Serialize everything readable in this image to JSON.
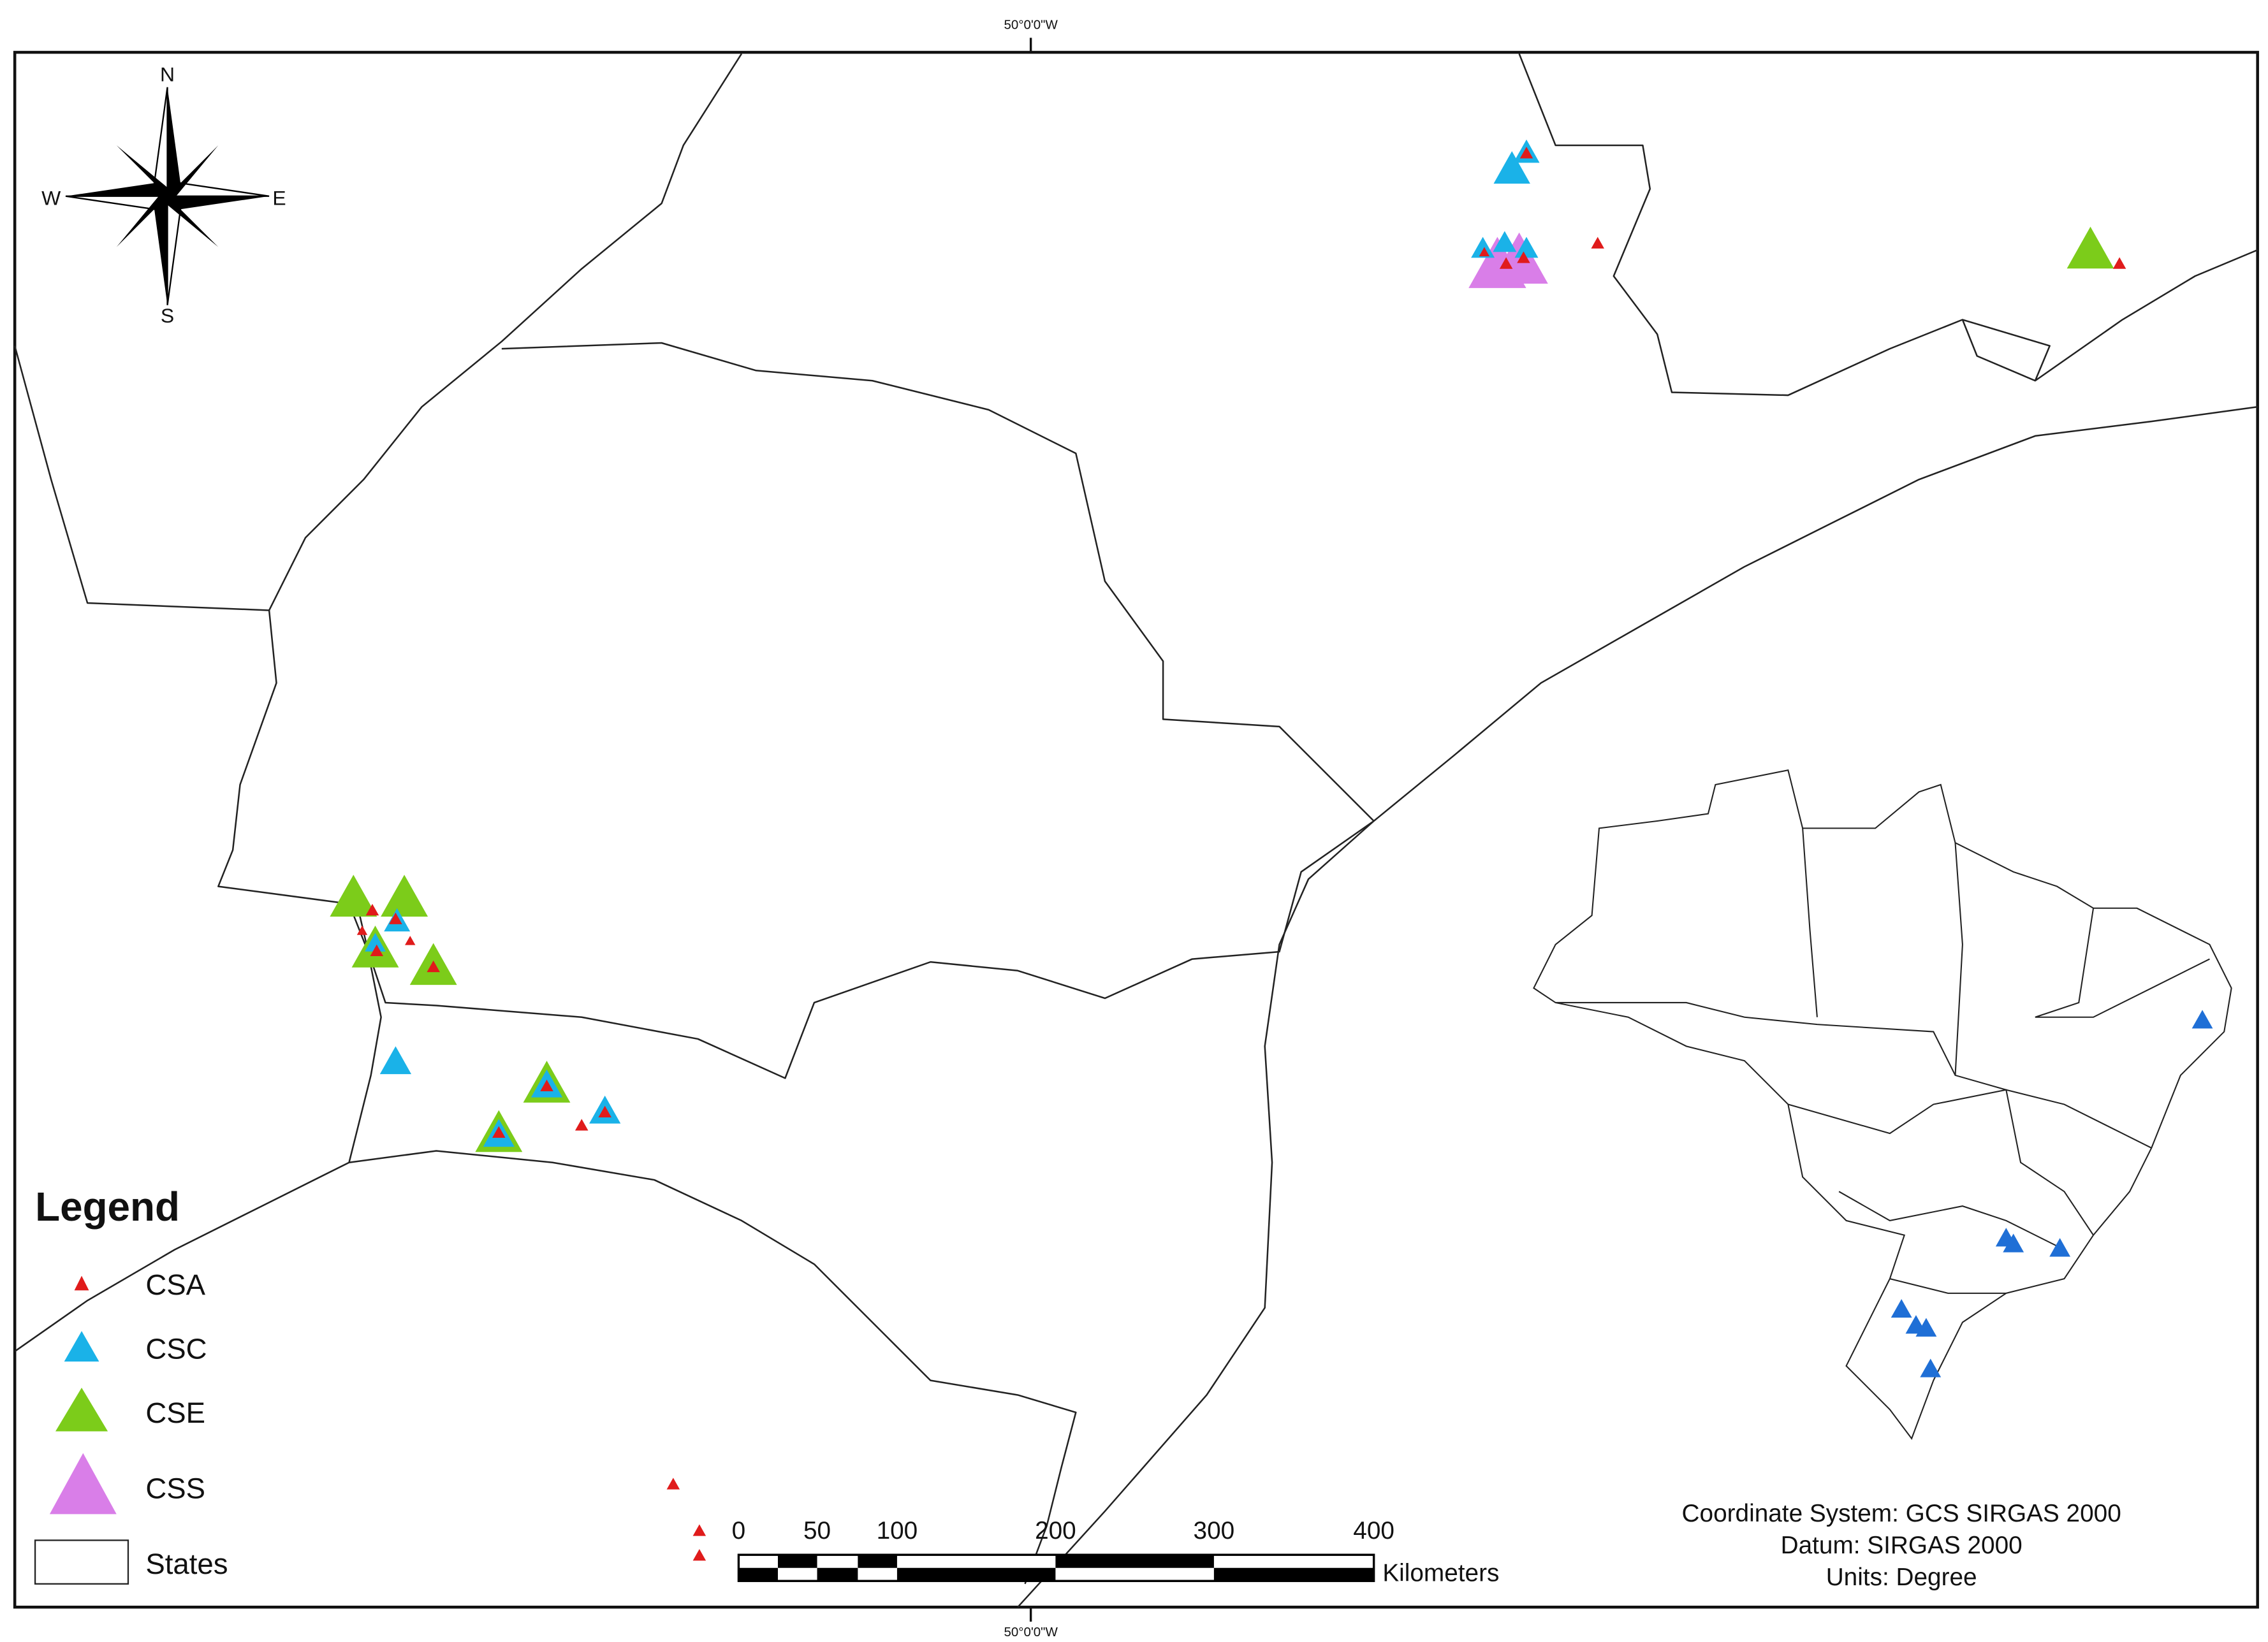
{
  "graticule": {
    "top": "50°0'0\"W",
    "bottom": "50°0'0\"W"
  },
  "compass": {
    "north": "N",
    "south": "S",
    "east": "E",
    "west": "W"
  },
  "legend": {
    "title": "Legend",
    "items": [
      "CSA",
      "CSC",
      "CSE",
      "CSS",
      "States"
    ]
  },
  "scale_bar": {
    "labels": [
      "0",
      "50",
      "100",
      "200",
      "300",
      "400"
    ],
    "unit": "Kilometers"
  },
  "coordinate_info": [
    "Coordinate System: GCS SIRGAS 2000",
    "Datum: SIRGAS 2000",
    "Units: Degree"
  ]
}
